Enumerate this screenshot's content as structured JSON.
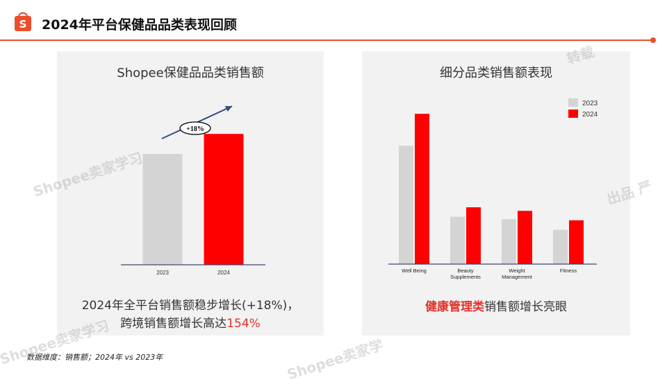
{
  "header": {
    "title": "2024年平台保健品品类表现回顾",
    "logo_letter": "S",
    "accent": "#ee4d2d"
  },
  "left_panel": {
    "title": "Shopee保健品品类销售额",
    "caption_line1": "2024年全平台销售额稳步增长(+18%)，",
    "caption_line2_prefix": "跨境销售额增长高达",
    "caption_line2_highlight": "154%"
  },
  "right_panel": {
    "title": "细分品类销售额表现",
    "caption_highlight": "健康管理类",
    "caption_rest": "销售额增长亮眼"
  },
  "footnote": "数据维度：销售额；2024年 vs 2023年",
  "watermarks": [
    "Shopee卖家学习",
    "Shopee卖家学习",
    "Shopee卖家学",
    "出品 严",
    "转载"
  ],
  "colors": {
    "y2023": "#d4d4d4",
    "y2024": "#ff0000",
    "axis": "#3b4a6b",
    "arrow": "#2f4f80"
  },
  "chart_data": [
    {
      "type": "bar",
      "categories": [
        "2023",
        "2024"
      ],
      "values": [
        100,
        118
      ],
      "title": "Shopee保健品品类销售额",
      "annotation": "+18%",
      "ylim": [
        0,
        150
      ]
    },
    {
      "type": "bar",
      "categories": [
        "Well Being",
        "Beauty Supplements",
        "Weight Management",
        "Fitness"
      ],
      "series": [
        {
          "name": "2023",
          "values": [
            100,
            40,
            38,
            29
          ]
        },
        {
          "name": "2024",
          "values": [
            127,
            48,
            45,
            37
          ]
        }
      ],
      "title": "细分品类销售额表现",
      "legend": "top-right",
      "ylim": [
        0,
        140
      ]
    }
  ]
}
